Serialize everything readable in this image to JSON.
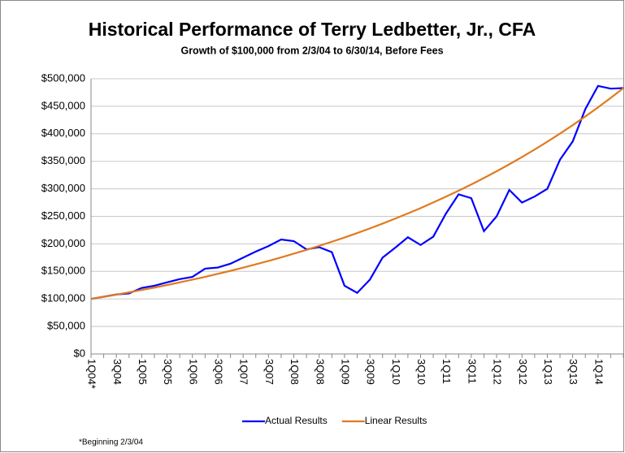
{
  "chart_data": {
    "type": "line",
    "title": "Historical Performance of Terry Ledbetter, Jr., CFA",
    "subtitle": "Growth of $100,000 from 2/3/04 to 6/30/14, Before Fees",
    "footnote": "*Beginning 2/3/04",
    "categories": [
      "1Q04*",
      null,
      "3Q04",
      null,
      "1Q05",
      null,
      "3Q05",
      null,
      "1Q06",
      null,
      "3Q06",
      null,
      "1Q07",
      null,
      "3Q07",
      null,
      "1Q08",
      null,
      "3Q08",
      null,
      "1Q09",
      null,
      "3Q09",
      null,
      "1Q10",
      null,
      "3Q10",
      null,
      "1Q11",
      null,
      "3Q11",
      null,
      "1Q12",
      null,
      "3Q12",
      null,
      "1Q13",
      null,
      "3Q13",
      null,
      "1Q14",
      null,
      null
    ],
    "series": [
      {
        "name": "Actual Results",
        "color": "#0000ff",
        "values": [
          100000,
          104000,
          108000,
          110000,
          120000,
          124000,
          130000,
          136000,
          140000,
          155000,
          157000,
          164000,
          175000,
          186000,
          196000,
          208000,
          205000,
          190000,
          194000,
          185000,
          124000,
          111000,
          135000,
          175000,
          193000,
          212000,
          198000,
          213000,
          255000,
          290000,
          283000,
          223000,
          250000,
          298000,
          275000,
          286000,
          300000,
          353000,
          386000,
          445000,
          487000,
          482000,
          483000
        ]
      },
      {
        "name": "Linear Results",
        "color": "#e07a1f",
        "values": [
          100000,
          103800,
          107800,
          111900,
          116200,
          120600,
          125200,
          130000,
          135000,
          140100,
          145500,
          151000,
          156800,
          162800,
          169000,
          175500,
          182200,
          189100,
          196400,
          203900,
          211600,
          219700,
          228100,
          236800,
          245900,
          255300,
          265000,
          275200,
          285700,
          296600,
          307900,
          319700,
          331900,
          344600,
          357800,
          371400,
          385600,
          400400,
          415700,
          431500,
          448000,
          465200,
          483000
        ]
      }
    ],
    "ylim": [
      0,
      500000
    ],
    "yticks": [
      {
        "value": 0,
        "label": "$0"
      },
      {
        "value": 50000,
        "label": "$50,000"
      },
      {
        "value": 100000,
        "label": "$100,000"
      },
      {
        "value": 150000,
        "label": "$150,000"
      },
      {
        "value": 200000,
        "label": "$200,000"
      },
      {
        "value": 250000,
        "label": "$250,000"
      },
      {
        "value": 300000,
        "label": "$300,000"
      },
      {
        "value": 350000,
        "label": "$350,000"
      },
      {
        "value": 400000,
        "label": "$400,000"
      },
      {
        "value": 450000,
        "label": "$450,000"
      },
      {
        "value": 500000,
        "label": "$500,000"
      }
    ],
    "grid": true,
    "legend": "bottom"
  }
}
